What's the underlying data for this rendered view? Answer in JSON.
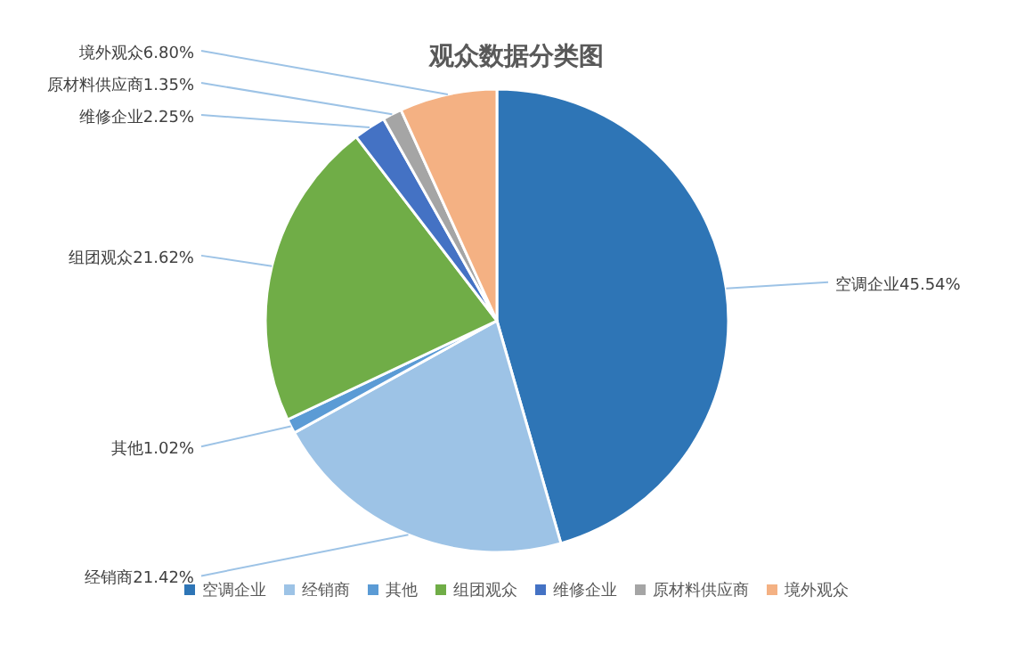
{
  "chart_data": {
    "type": "pie",
    "title": "观众数据分类图",
    "categories": [
      "空调企业",
      "经销商",
      "其他",
      "组团观众",
      "维修企业",
      "原材料供应商",
      "境外观众"
    ],
    "values": [
      45.54,
      21.42,
      1.02,
      21.62,
      2.25,
      1.35,
      6.8
    ],
    "value_labels": [
      "45.54%",
      "21.42%",
      "1.02%",
      "21.62%",
      "2.25%",
      "1.35%",
      "6.80%"
    ],
    "colors": [
      "#2e75b6",
      "#9dc3e6",
      "#5b9bd5",
      "#70ad47",
      "#4472c4",
      "#a5a5a5",
      "#f4b183"
    ],
    "legend": "bottom"
  }
}
